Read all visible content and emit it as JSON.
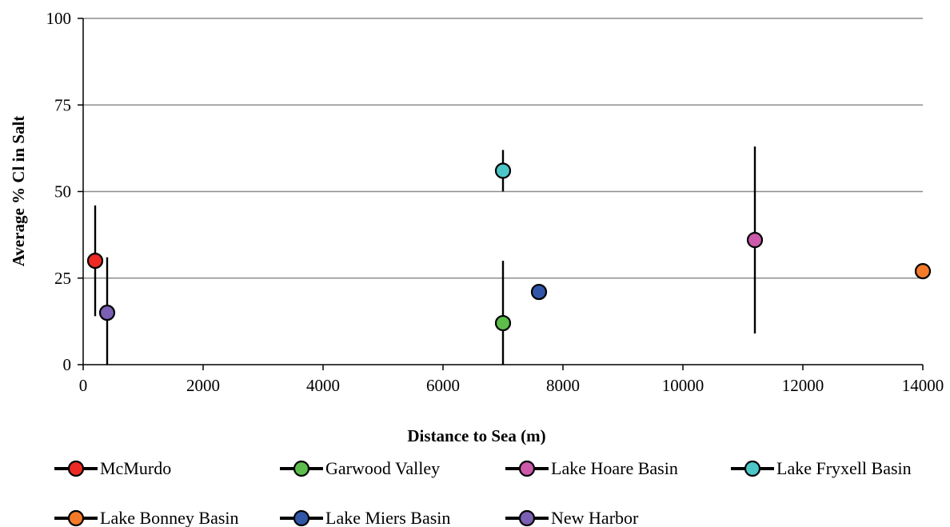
{
  "chart_data": {
    "type": "scatter",
    "xlabel": "Distance to Sea (m)",
    "ylabel": "Average % Cl in Salt",
    "xlim": [
      0,
      14000
    ],
    "ylim": [
      0,
      100
    ],
    "xticks": [
      0,
      2000,
      4000,
      6000,
      8000,
      10000,
      12000,
      14000
    ],
    "yticks": [
      0,
      25,
      50,
      75,
      100
    ],
    "grid": "horizontal",
    "legend_position": "bottom",
    "series": [
      {
        "name": "McMurdo",
        "color": "#ee2a24",
        "points": [
          {
            "x": 200,
            "y": 30,
            "ylow": 14,
            "yhigh": 46
          }
        ]
      },
      {
        "name": "Garwood Valley",
        "color": "#5cbd4b",
        "points": [
          {
            "x": 7000,
            "y": 12,
            "ylow": 0,
            "yhigh": 30
          }
        ]
      },
      {
        "name": "Lake Hoare Basin",
        "color": "#cc59a9",
        "points": [
          {
            "x": 11200,
            "y": 36,
            "ylow": 9,
            "yhigh": 63
          }
        ]
      },
      {
        "name": "Lake Fryxell Basin",
        "color": "#4cc6c8",
        "points": [
          {
            "x": 7000,
            "y": 56,
            "ylow": 50,
            "yhigh": 62
          }
        ]
      },
      {
        "name": "Lake Bonney Basin",
        "color": "#f47a2a",
        "points": [
          {
            "x": 14000,
            "y": 27,
            "ylow": 27,
            "yhigh": 27
          }
        ]
      },
      {
        "name": "Lake Miers Basin",
        "color": "#3156a8",
        "points": [
          {
            "x": 7600,
            "y": 21,
            "ylow": 21,
            "yhigh": 21
          }
        ]
      },
      {
        "name": "New Harbor",
        "color": "#7b5fb3",
        "points": [
          {
            "x": 400,
            "y": 15,
            "ylow": 0,
            "yhigh": 31
          }
        ]
      }
    ]
  }
}
